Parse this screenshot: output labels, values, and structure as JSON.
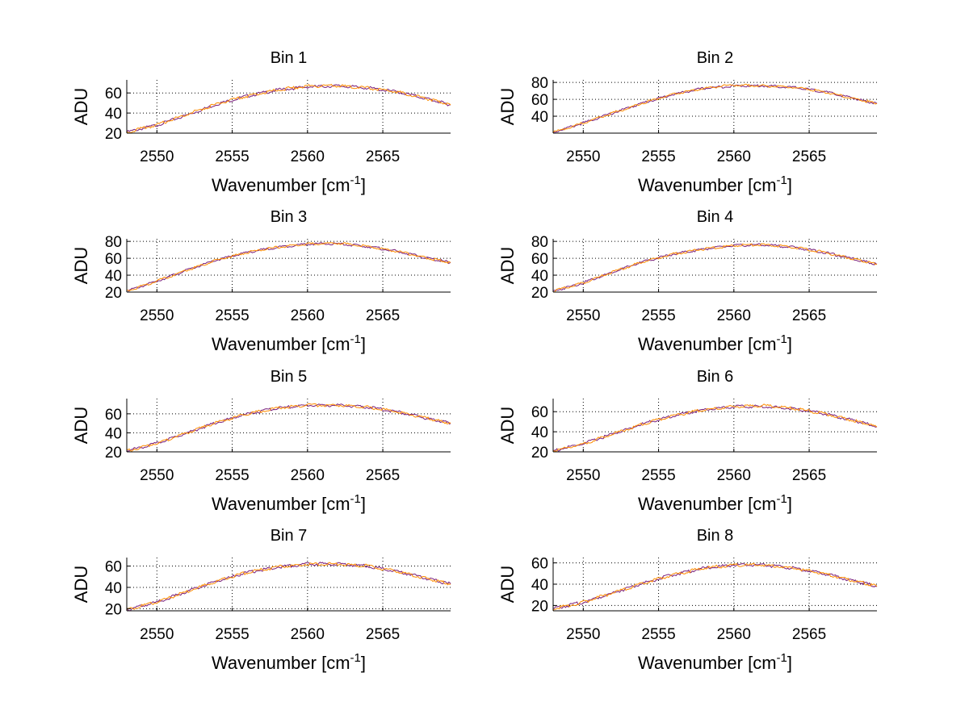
{
  "chart_data": [
    {
      "type": "line",
      "title": "Bin 1",
      "xlabel": "Wavenumber [cm",
      "xlabel_sup": "-1",
      "xlabel_end": "]",
      "ylabel": "ADU",
      "xlim": [
        2548,
        2569.5
      ],
      "ylim": [
        20,
        73
      ],
      "xticks": [
        2550,
        2555,
        2560,
        2565
      ],
      "yticks": [
        20,
        40,
        60
      ],
      "grid": true,
      "series": [
        {
          "color": "#7a1f7a",
          "x": [
            2548,
            2550,
            2552,
            2554,
            2556,
            2558,
            2560,
            2562,
            2564,
            2566,
            2568,
            2569.5
          ],
          "y": [
            21,
            28,
            38,
            49,
            57,
            63,
            66,
            67,
            65,
            61,
            54,
            48
          ]
        },
        {
          "color": "#ff8c00",
          "x": [
            2548,
            2550,
            2552,
            2554,
            2556,
            2558,
            2560,
            2562,
            2564,
            2566,
            2568,
            2569.5
          ],
          "y": [
            21,
            28,
            39,
            49,
            57,
            63,
            67,
            67,
            65,
            61,
            54,
            48
          ]
        }
      ]
    },
    {
      "type": "line",
      "title": "Bin 2",
      "xlabel": "Wavenumber [cm",
      "xlabel_sup": "-1",
      "xlabel_end": "]",
      "ylabel": "ADU",
      "xlim": [
        2548,
        2569.5
      ],
      "ylim": [
        20,
        83
      ],
      "xticks": [
        2550,
        2555,
        2560,
        2565
      ],
      "yticks": [
        40,
        60,
        80
      ],
      "grid": true,
      "series": [
        {
          "color": "#7a1f7a",
          "x": [
            2548,
            2550,
            2552,
            2554,
            2556,
            2558,
            2560,
            2562,
            2564,
            2566,
            2568,
            2569.5
          ],
          "y": [
            21,
            32,
            44,
            56,
            66,
            73,
            76,
            76,
            74,
            69,
            61,
            55
          ]
        },
        {
          "color": "#ff8c00",
          "x": [
            2548,
            2550,
            2552,
            2554,
            2556,
            2558,
            2560,
            2562,
            2564,
            2566,
            2568,
            2569.5
          ],
          "y": [
            21,
            32,
            44,
            56,
            66,
            73,
            77,
            76,
            74,
            69,
            61,
            55
          ]
        }
      ]
    },
    {
      "type": "line",
      "title": "Bin 3",
      "xlabel": "Wavenumber [cm",
      "xlabel_sup": "-1",
      "xlabel_end": "]",
      "ylabel": "ADU",
      "xlim": [
        2548,
        2569.5
      ],
      "ylim": [
        20,
        83
      ],
      "xticks": [
        2550,
        2555,
        2560,
        2565
      ],
      "yticks": [
        20,
        40,
        60,
        80
      ],
      "grid": true,
      "series": [
        {
          "color": "#7a1f7a",
          "x": [
            2548,
            2550,
            2552,
            2554,
            2556,
            2558,
            2560,
            2562,
            2564,
            2566,
            2568,
            2569.5
          ],
          "y": [
            21,
            33,
            46,
            58,
            67,
            73,
            77,
            77,
            74,
            68,
            60,
            55
          ]
        },
        {
          "color": "#ff8c00",
          "x": [
            2548,
            2550,
            2552,
            2554,
            2556,
            2558,
            2560,
            2562,
            2564,
            2566,
            2568,
            2569.5
          ],
          "y": [
            21,
            33,
            46,
            58,
            67,
            73,
            77,
            78,
            74,
            68,
            60,
            55
          ]
        }
      ]
    },
    {
      "type": "line",
      "title": "Bin 4",
      "xlabel": "Wavenumber [cm",
      "xlabel_sup": "-1",
      "xlabel_end": "]",
      "ylabel": "ADU",
      "xlim": [
        2548,
        2569.5
      ],
      "ylim": [
        20,
        83
      ],
      "xticks": [
        2550,
        2555,
        2560,
        2565
      ],
      "yticks": [
        20,
        40,
        60,
        80
      ],
      "grid": true,
      "series": [
        {
          "color": "#7a1f7a",
          "x": [
            2548,
            2550,
            2552,
            2554,
            2556,
            2558,
            2560,
            2562,
            2564,
            2566,
            2568,
            2569.5
          ],
          "y": [
            21,
            31,
            44,
            56,
            65,
            71,
            75,
            76,
            73,
            67,
            59,
            53
          ]
        },
        {
          "color": "#ff8c00",
          "x": [
            2548,
            2550,
            2552,
            2554,
            2556,
            2558,
            2560,
            2562,
            2564,
            2566,
            2568,
            2569.5
          ],
          "y": [
            21,
            31,
            44,
            56,
            65,
            71,
            75,
            76,
            73,
            67,
            59,
            53
          ]
        }
      ]
    },
    {
      "type": "line",
      "title": "Bin 5",
      "xlabel": "Wavenumber [cm",
      "xlabel_sup": "-1",
      "xlabel_end": "]",
      "ylabel": "ADU",
      "xlim": [
        2548,
        2569.5
      ],
      "ylim": [
        20,
        76
      ],
      "xticks": [
        2550,
        2555,
        2560,
        2565
      ],
      "yticks": [
        20,
        40,
        60
      ],
      "grid": true,
      "series": [
        {
          "color": "#7a1f7a",
          "x": [
            2548,
            2550,
            2552,
            2554,
            2556,
            2558,
            2560,
            2562,
            2564,
            2566,
            2568,
            2569.5
          ],
          "y": [
            21,
            29,
            40,
            51,
            60,
            66,
            69,
            69,
            67,
            62,
            55,
            50
          ]
        },
        {
          "color": "#ff8c00",
          "x": [
            2548,
            2550,
            2552,
            2554,
            2556,
            2558,
            2560,
            2562,
            2564,
            2566,
            2568,
            2569.5
          ],
          "y": [
            21,
            29,
            40,
            51,
            60,
            66,
            69,
            69,
            67,
            62,
            55,
            50
          ]
        }
      ]
    },
    {
      "type": "line",
      "title": "Bin 6",
      "xlabel": "Wavenumber [cm",
      "xlabel_sup": "-1",
      "xlabel_end": "]",
      "ylabel": "ADU",
      "xlim": [
        2548,
        2569.5
      ],
      "ylim": [
        20,
        73
      ],
      "xticks": [
        2550,
        2555,
        2560,
        2565
      ],
      "yticks": [
        20,
        40,
        60
      ],
      "grid": true,
      "series": [
        {
          "color": "#7a1f7a",
          "x": [
            2548,
            2550,
            2552,
            2554,
            2556,
            2558,
            2560,
            2562,
            2564,
            2566,
            2568,
            2569.5
          ],
          "y": [
            21,
            28,
            38,
            48,
            56,
            62,
            65,
            65,
            63,
            58,
            51,
            45
          ]
        },
        {
          "color": "#ff8c00",
          "x": [
            2548,
            2550,
            2552,
            2554,
            2556,
            2558,
            2560,
            2562,
            2564,
            2566,
            2568,
            2569.5
          ],
          "y": [
            21,
            28,
            38,
            48,
            56,
            62,
            65,
            66,
            63,
            58,
            51,
            45
          ]
        }
      ]
    },
    {
      "type": "line",
      "title": "Bin 7",
      "xlabel": "Wavenumber [cm",
      "xlabel_sup": "-1",
      "xlabel_end": "]",
      "ylabel": "ADU",
      "xlim": [
        2548,
        2569.5
      ],
      "ylim": [
        18,
        68
      ],
      "xticks": [
        2550,
        2555,
        2560,
        2565
      ],
      "yticks": [
        20,
        40,
        60
      ],
      "grid": true,
      "series": [
        {
          "color": "#7a1f7a",
          "x": [
            2548,
            2550,
            2552,
            2554,
            2556,
            2558,
            2560,
            2562,
            2564,
            2566,
            2568,
            2569.5
          ],
          "y": [
            19,
            26,
            36,
            46,
            54,
            59,
            62,
            62,
            60,
            55,
            48,
            43
          ]
        },
        {
          "color": "#ff8c00",
          "x": [
            2548,
            2550,
            2552,
            2554,
            2556,
            2558,
            2560,
            2562,
            2564,
            2566,
            2568,
            2569.5
          ],
          "y": [
            19,
            26,
            36,
            46,
            54,
            59,
            62,
            62,
            60,
            55,
            48,
            43
          ]
        }
      ]
    },
    {
      "type": "line",
      "title": "Bin 8",
      "xlabel": "Wavenumber [cm",
      "xlabel_sup": "-1",
      "xlabel_end": "]",
      "ylabel": "ADU",
      "xlim": [
        2548,
        2569.5
      ],
      "ylim": [
        15,
        65
      ],
      "xticks": [
        2550,
        2555,
        2560,
        2565
      ],
      "yticks": [
        20,
        40,
        60
      ],
      "grid": true,
      "series": [
        {
          "color": "#7a1f7a",
          "x": [
            2548,
            2550,
            2552,
            2554,
            2556,
            2558,
            2560,
            2562,
            2564,
            2566,
            2568,
            2569.5
          ],
          "y": [
            17,
            23,
            32,
            41,
            49,
            55,
            58,
            58,
            55,
            50,
            43,
            38
          ]
        },
        {
          "color": "#ff8c00",
          "x": [
            2548,
            2550,
            2552,
            2554,
            2556,
            2558,
            2560,
            2562,
            2564,
            2566,
            2568,
            2569.5
          ],
          "y": [
            17,
            23,
            32,
            41,
            49,
            55,
            58,
            58,
            55,
            50,
            43,
            38
          ]
        }
      ]
    }
  ]
}
